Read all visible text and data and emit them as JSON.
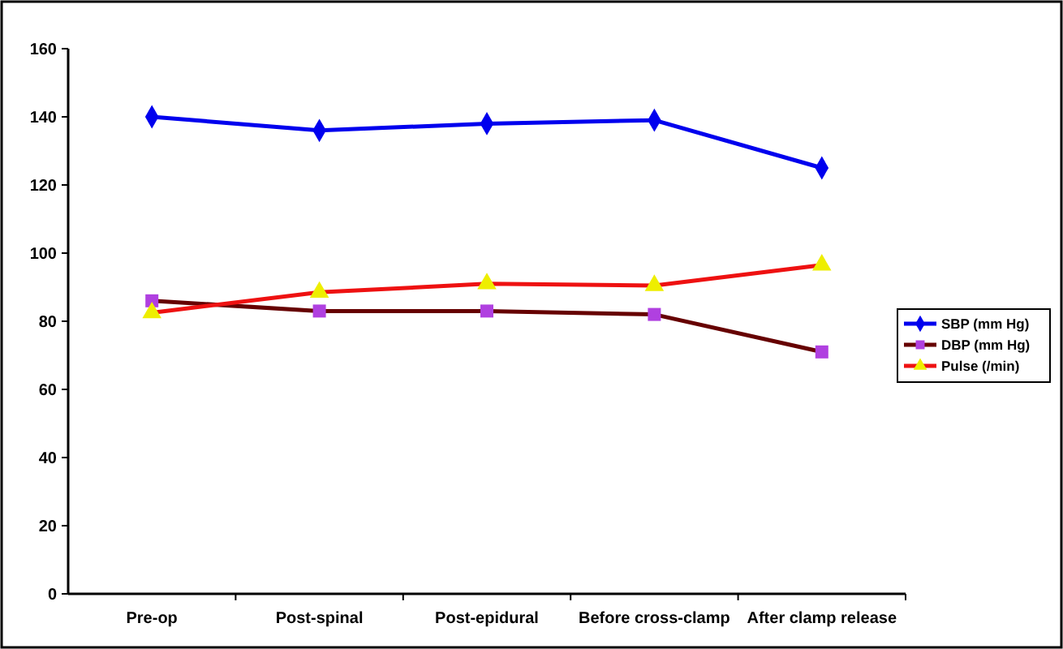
{
  "chart_data": {
    "type": "line",
    "categories": [
      "Pre-op",
      "Post-spinal",
      "Post-epidural",
      "Before cross-clamp",
      "After clamp release"
    ],
    "ylim": [
      0,
      160
    ],
    "yticks": [
      0,
      20,
      40,
      60,
      80,
      100,
      120,
      140,
      160
    ],
    "grid": false,
    "legend": "right",
    "series": [
      {
        "name": "SBP (mm Hg)",
        "color": "#0000ee",
        "marker": "diamond",
        "values": [
          140,
          136,
          138,
          139,
          125
        ]
      },
      {
        "name": "DBP (mm Hg)",
        "color": "#660000",
        "marker": "square",
        "colors": [
          "#b040e0",
          "#b040e0",
          "#b040e0",
          "#b040e0",
          "#b040e0"
        ],
        "values": [
          86,
          83,
          83,
          82,
          71
        ]
      },
      {
        "name": "Pulse (/min)",
        "color": "#ee1111",
        "marker": "triangle",
        "colors": [
          "#eeee00",
          "#eeee00",
          "#eeee00",
          "#eeee00",
          "#eeee00"
        ],
        "values": [
          82.5,
          88.5,
          91,
          90.5,
          96.5
        ]
      }
    ]
  }
}
